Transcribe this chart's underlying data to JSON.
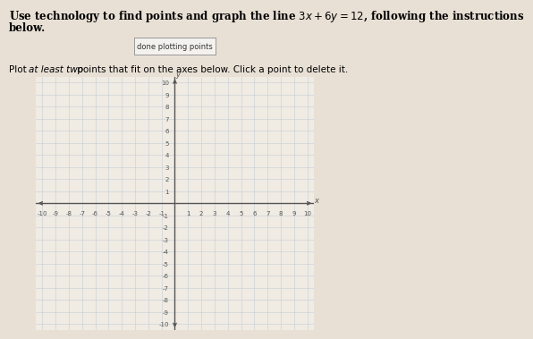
{
  "button_text": "done plotting points",
  "instruction_italic": "at least two",
  "instruction_pre": "Plot ",
  "instruction_post": " points that fit on the axes below. Click a point to delete it.",
  "title_line1": "Use technology to find points and graph the line $3x + 6y = 12$, following the instructions",
  "title_line2": "below.",
  "xlim": [
    -10.5,
    10.5
  ],
  "ylim": [
    -10.5,
    10.5
  ],
  "grid_color": "#c5cdd8",
  "grid_linewidth": 0.4,
  "axis_color": "#555555",
  "axis_linewidth": 1.0,
  "bg_color": "#e8e0d5",
  "plot_bg_color": "#f0ebe3",
  "tick_label_fontsize": 5.0,
  "title_fontsize": 8.5,
  "btn_fontsize": 6.0,
  "instruction_fontsize": 7.5
}
